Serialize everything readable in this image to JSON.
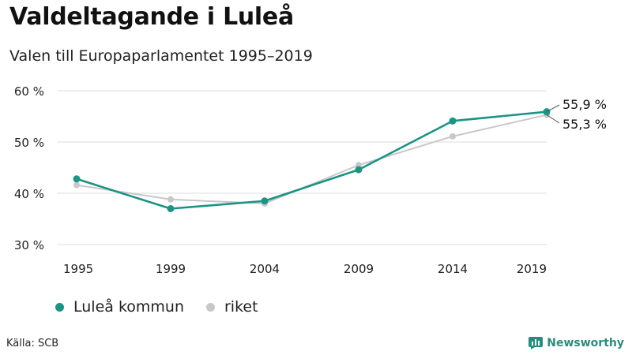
{
  "title": "Valdeltagande i Luleå",
  "subtitle": "Valen till Europaparlamentet 1995–2019",
  "source": "Källa: SCB",
  "brand": {
    "name": "Newsworthy",
    "icon": "newsworthy-logo-icon",
    "color": "#2a8c7e"
  },
  "colors": {
    "primary": "#1a9483",
    "secondary": "#c8c8c8",
    "grid": "#dddddd"
  },
  "chart_data": {
    "type": "line",
    "categories": [
      "1995",
      "1999",
      "2004",
      "2009",
      "2014",
      "2019"
    ],
    "series": [
      {
        "name": "Luleå kommun",
        "values": [
          42.8,
          37.0,
          38.5,
          44.6,
          54.1,
          55.9
        ],
        "color": "#1a9483"
      },
      {
        "name": "riket",
        "values": [
          41.6,
          38.8,
          38.0,
          45.5,
          51.1,
          55.3
        ],
        "color": "#c8c8c8"
      }
    ],
    "ylim": [
      30,
      60
    ],
    "yticks": [
      30,
      40,
      50,
      60
    ],
    "ytick_labels": [
      "30 %",
      "40 %",
      "50 %",
      "60 %"
    ],
    "end_labels": [
      "55,9 %",
      "55,3 %"
    ],
    "grid": true,
    "legend": "bottom-left",
    "xlabel": "",
    "ylabel": ""
  }
}
